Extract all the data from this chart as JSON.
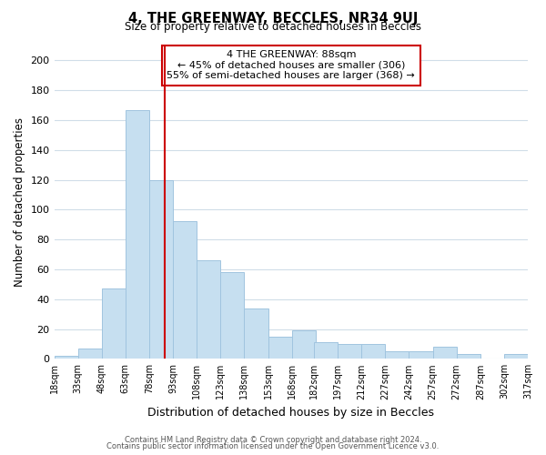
{
  "title": "4, THE GREENWAY, BECCLES, NR34 9UJ",
  "subtitle": "Size of property relative to detached houses in Beccles",
  "xlabel": "Distribution of detached houses by size in Beccles",
  "ylabel": "Number of detached properties",
  "bar_color": "#c6dff0",
  "bar_edge_color": "#a0c4df",
  "grid_color": "#d0dde8",
  "bins": [
    18,
    33,
    48,
    63,
    78,
    93,
    108,
    123,
    138,
    153,
    168,
    182,
    197,
    212,
    227,
    242,
    257,
    272,
    287,
    302,
    317
  ],
  "counts": [
    2,
    7,
    47,
    167,
    120,
    92,
    66,
    58,
    34,
    15,
    19,
    11,
    10,
    10,
    5,
    5,
    8,
    3,
    0,
    3
  ],
  "tick_labels": [
    "18sqm",
    "33sqm",
    "48sqm",
    "63sqm",
    "78sqm",
    "93sqm",
    "108sqm",
    "123sqm",
    "138sqm",
    "153sqm",
    "168sqm",
    "182sqm",
    "197sqm",
    "212sqm",
    "227sqm",
    "242sqm",
    "257sqm",
    "272sqm",
    "287sqm",
    "302sqm",
    "317sqm"
  ],
  "vline_x": 88,
  "vline_color": "#cc0000",
  "annotation_title": "4 THE GREENWAY: 88sqm",
  "annotation_line1": "← 45% of detached houses are smaller (306)",
  "annotation_line2": "55% of semi-detached houses are larger (368) →",
  "annotation_box_color": "#ffffff",
  "annotation_box_edge": "#cc0000",
  "ylim": [
    0,
    210
  ],
  "yticks": [
    0,
    20,
    40,
    60,
    80,
    100,
    120,
    140,
    160,
    180,
    200
  ],
  "footnote1": "Contains HM Land Registry data © Crown copyright and database right 2024.",
  "footnote2": "Contains public sector information licensed under the Open Government Licence v3.0."
}
